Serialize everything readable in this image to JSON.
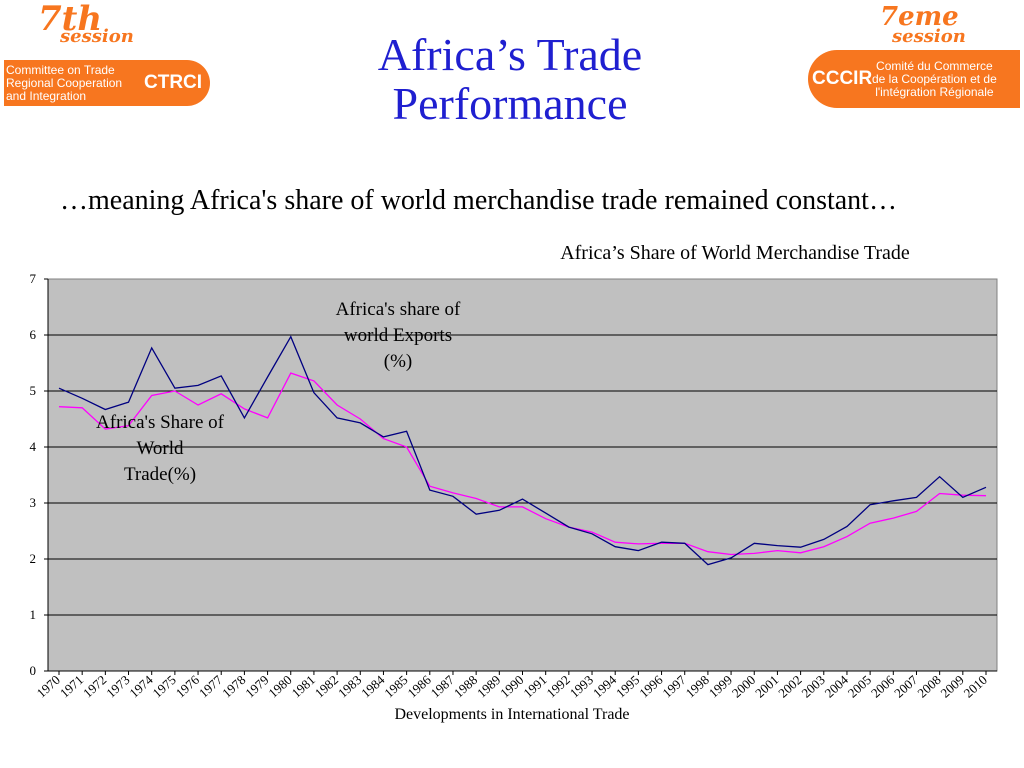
{
  "logo_left": {
    "session_number": "7th",
    "session_word": "session",
    "lines": [
      "Committee on Trade",
      "Regional Cooperation",
      "and Integration"
    ],
    "acronym": "CTRCI"
  },
  "logo_right": {
    "session_number": "7eme",
    "session_word": "session",
    "lines": [
      "Comité du Commerce",
      "de la Coopération et de",
      "l'intégration Régionale"
    ],
    "acronym": "CCCIR"
  },
  "title": {
    "line1": "Africa’s Trade",
    "line2": "Performance"
  },
  "subtitle": "…meaning Africa's share of  world merchandise trade remained constant…",
  "footer": "Developments in International Trade",
  "colors": {
    "title": "#1f1fd0",
    "orange": "#f7761f",
    "plot_bg": "#c0c0c0",
    "trade_line": "#000080",
    "exports_line": "#ff00ff"
  },
  "chart_data": {
    "type": "line",
    "title": "Africa’s Share of  World Merchandise Trade",
    "xlabel": "",
    "ylabel": "",
    "ylim": [
      0,
      7
    ],
    "yticks": [
      "0",
      "1",
      "2",
      "3",
      "4",
      "5",
      "6",
      "7"
    ],
    "grid": true,
    "x": [
      "1970",
      "1971",
      "1972",
      "1973",
      "1974",
      "1975",
      "1976",
      "1977",
      "1978",
      "1979",
      "1980",
      "1981",
      "1982",
      "1983",
      "1984",
      "1985",
      "1986",
      "1987",
      "1988",
      "1989",
      "1990",
      "1991",
      "1992",
      "1993",
      "1994",
      "1995",
      "1996",
      "1997",
      "1998",
      "1999",
      "2000",
      "2001",
      "2002",
      "2003",
      "2004",
      "2005",
      "2006",
      "2007",
      "2008",
      "2009",
      "2010"
    ],
    "series": [
      {
        "name": "Africa's Share of World Trade(%)",
        "color": "#000080",
        "values": [
          5.05,
          4.87,
          4.67,
          4.8,
          5.77,
          5.05,
          5.1,
          5.27,
          4.52,
          5.25,
          5.97,
          4.97,
          4.52,
          4.43,
          4.18,
          4.28,
          3.23,
          3.12,
          2.8,
          2.87,
          3.07,
          2.82,
          2.57,
          2.45,
          2.22,
          2.15,
          2.3,
          2.28,
          1.9,
          2.02,
          2.28,
          2.24,
          2.21,
          2.35,
          2.58,
          2.97,
          3.04,
          3.1,
          3.47,
          3.1,
          3.28
        ]
      },
      {
        "name": "Africa's share of world Exports (%)",
        "color": "#ff00ff",
        "values": [
          4.72,
          4.7,
          4.32,
          4.38,
          4.92,
          5.0,
          4.75,
          4.95,
          4.68,
          4.52,
          5.32,
          5.18,
          4.75,
          4.5,
          4.15,
          4.0,
          3.3,
          3.18,
          3.08,
          2.93,
          2.93,
          2.72,
          2.57,
          2.48,
          2.3,
          2.27,
          2.28,
          2.28,
          2.13,
          2.08,
          2.1,
          2.15,
          2.11,
          2.22,
          2.4,
          2.64,
          2.73,
          2.85,
          3.17,
          3.14,
          3.13
        ]
      }
    ],
    "annotations": [
      {
        "text_lines": [
          "Africa's share of",
          "world Exports",
          "(%)"
        ],
        "series": 1
      },
      {
        "text_lines": [
          "Africa's Share of",
          "World",
          "Trade(%)"
        ],
        "series": 0
      }
    ]
  }
}
